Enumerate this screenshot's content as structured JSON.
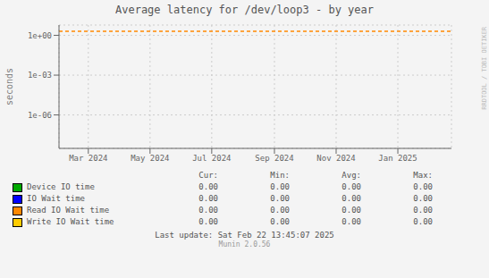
{
  "chart_data": {
    "type": "line",
    "title": "Average latency for /dev/loop3 - by year",
    "ylabel": "seconds",
    "log": "y",
    "grid": true,
    "xlim": [
      1706745600,
      1740268800
    ],
    "xticks": [
      {
        "value": 1709251200,
        "label": "Mar 2024"
      },
      {
        "value": 1714521600,
        "label": "May 2024"
      },
      {
        "value": 1719792000,
        "label": "Jul 2024"
      },
      {
        "value": 1725148800,
        "label": "Sep 2024"
      },
      {
        "value": 1730419200,
        "label": "Nov 2024"
      },
      {
        "value": 1735689600,
        "label": "Jan 2025"
      }
    ],
    "ylim": [
      3e-09,
      6.0
    ],
    "yticks": [
      {
        "value": 1e-06,
        "label": "1e-06"
      },
      {
        "value": 0.001,
        "label": "1e-03"
      },
      {
        "value": 1,
        "label": "1e+00"
      }
    ],
    "reference_line": {
      "y": 2.0,
      "color": "#ff8800",
      "line_style": "dashed"
    },
    "legend_table": {
      "headers": [
        "Cur:",
        "Min:",
        "Avg:",
        "Max:"
      ],
      "rows": [
        {
          "name": "Device IO time",
          "color": "#00aa00",
          "values": [
            {
              "value": 0,
              "label": "0.00"
            },
            {
              "value": 0,
              "label": "0.00"
            },
            {
              "value": 0,
              "label": "0.00"
            },
            {
              "value": 0,
              "label": "0.00"
            }
          ]
        },
        {
          "name": "IO Wait time",
          "color": "#0000ff",
          "values": [
            {
              "value": 0,
              "label": "0.00"
            },
            {
              "value": 0,
              "label": "0.00"
            },
            {
              "value": 0,
              "label": "0.00"
            },
            {
              "value": 0,
              "label": "0.00"
            }
          ]
        },
        {
          "name": "Read IO Wait time",
          "color": "#ff8800",
          "values": [
            {
              "value": 0,
              "label": "0.00"
            },
            {
              "value": 0,
              "label": "0.00"
            },
            {
              "value": 0,
              "label": "0.00"
            },
            {
              "value": 0,
              "label": "0.00"
            }
          ]
        },
        {
          "name": "Write IO Wait time",
          "color": "#ffcc00",
          "values": [
            {
              "value": 0,
              "label": "0.00"
            },
            {
              "value": 0,
              "label": "0.00"
            },
            {
              "value": 0,
              "label": "0.00"
            },
            {
              "value": 0,
              "label": "0.00"
            }
          ]
        }
      ]
    },
    "footer": [
      "Last update: Sat Feb 22 13:45:07 2025",
      "Munin 2.0.56"
    ],
    "watermark": "RRDTOOL / TOBI OETIKER"
  }
}
